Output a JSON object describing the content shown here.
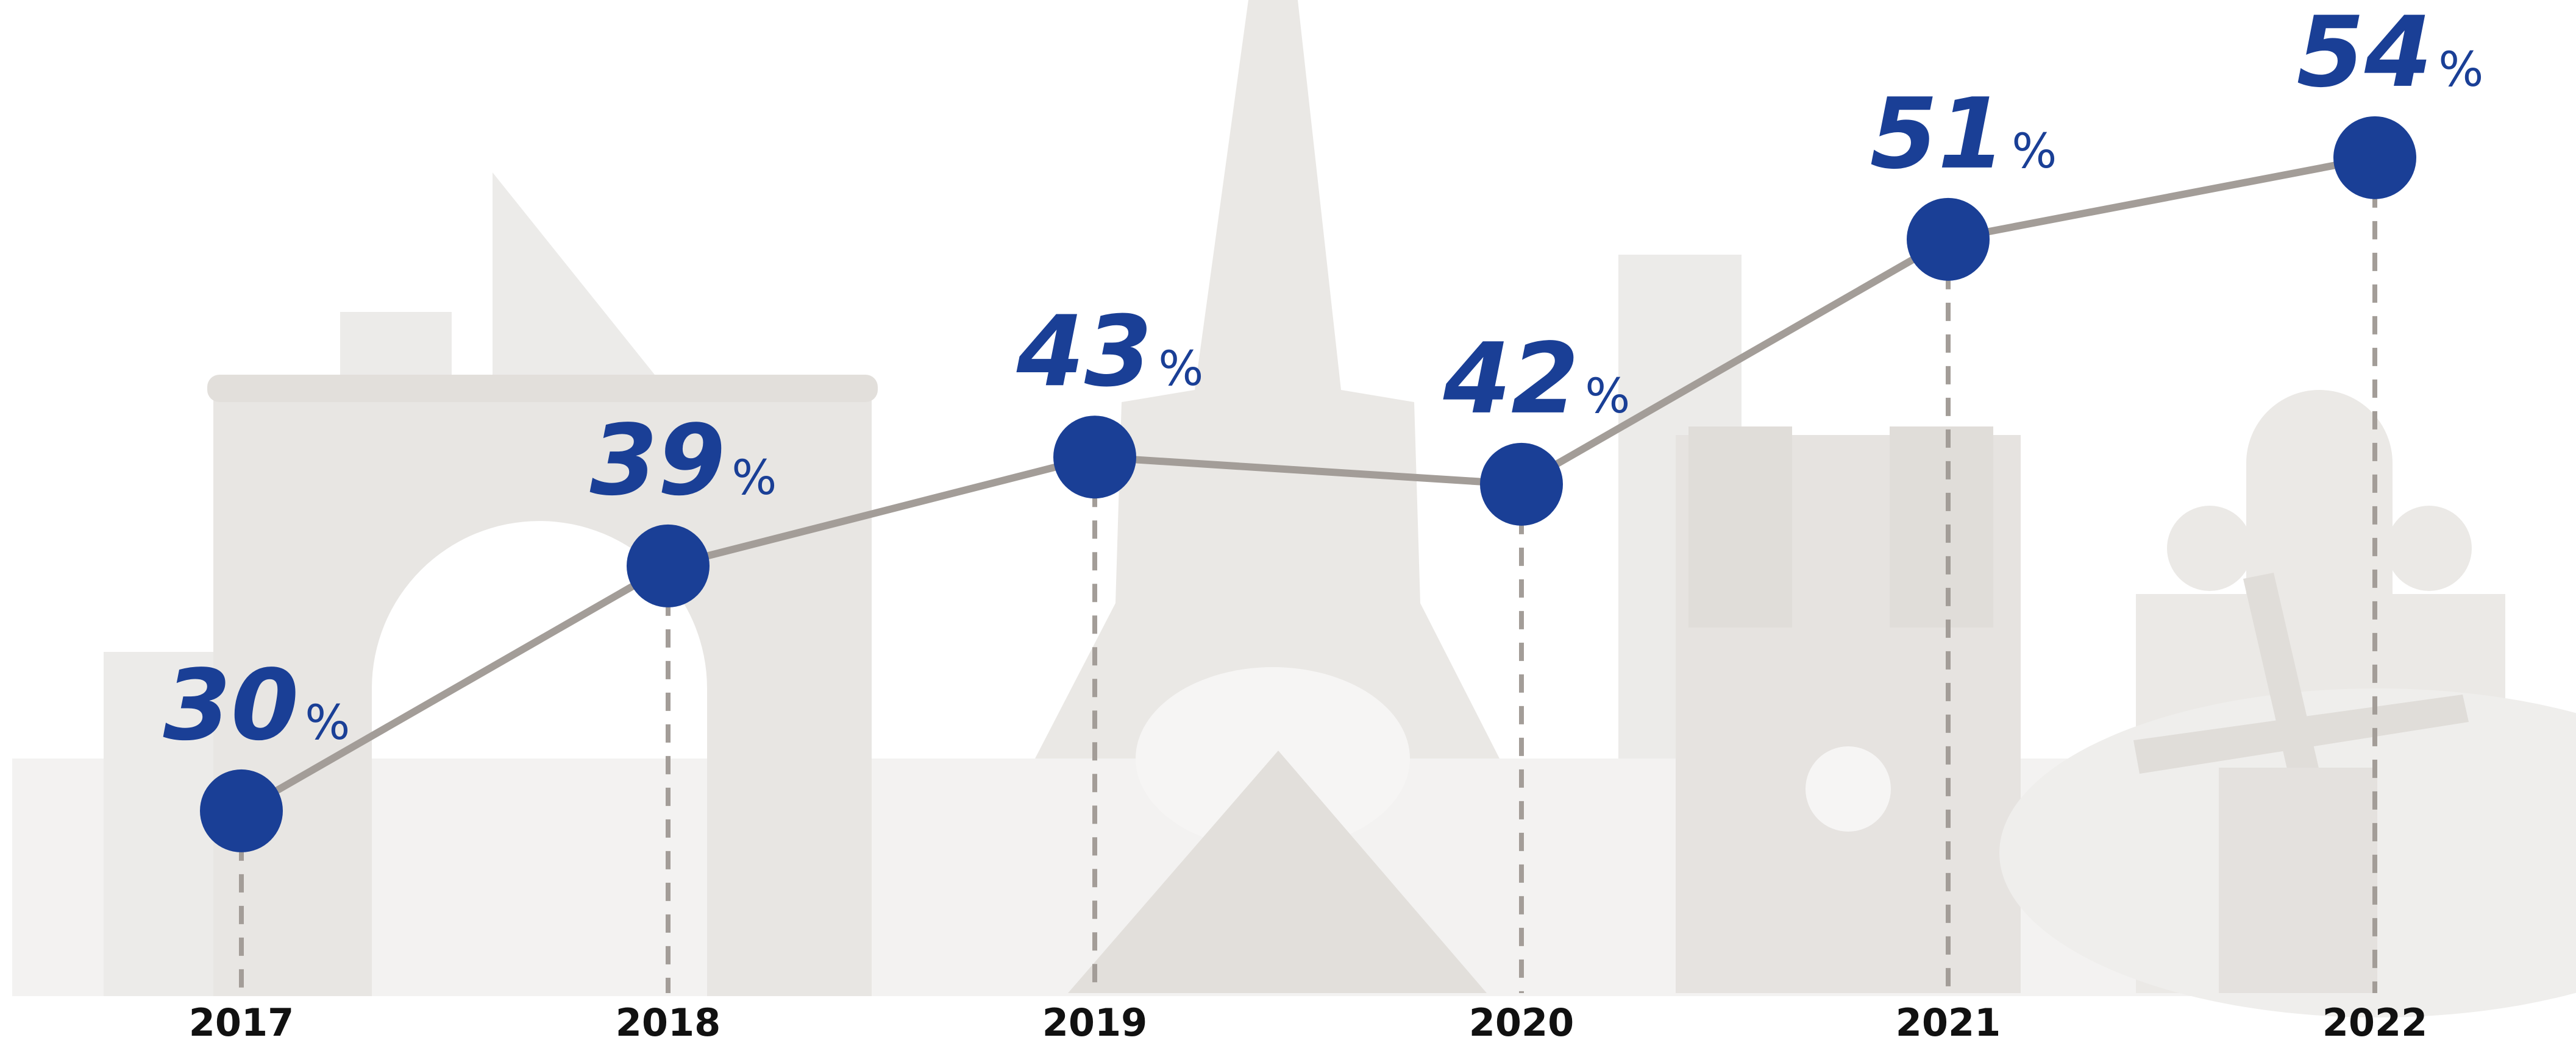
{
  "chart_data": {
    "type": "line",
    "categories": [
      "2017",
      "2018",
      "2019",
      "2020",
      "2021",
      "2022"
    ],
    "values": [
      30,
      39,
      43,
      42,
      51,
      54
    ],
    "value_labels": [
      "30%",
      "39%",
      "43%",
      "42%",
      "51%",
      "54%"
    ],
    "color": "#1a3f96",
    "line_color": "#a39d98"
  }
}
